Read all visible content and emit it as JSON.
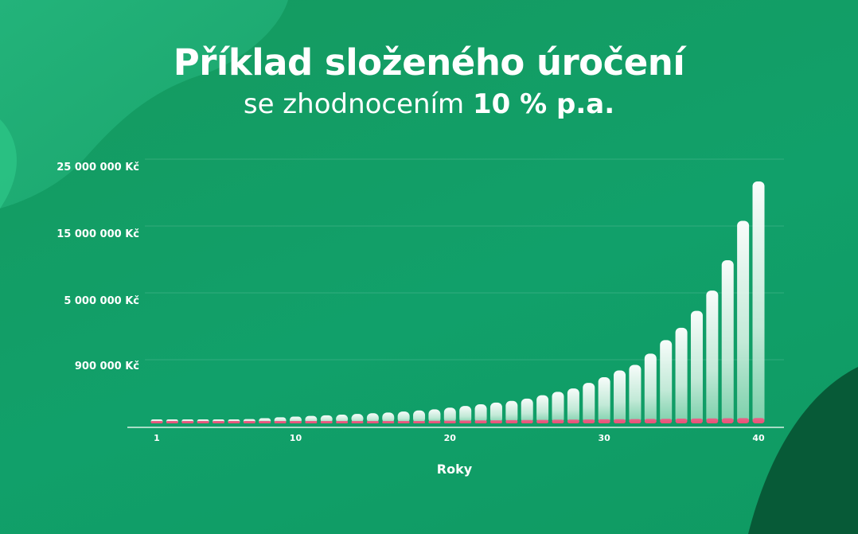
{
  "title": "Příklad složeného úročení",
  "subtitle_prefix": "se zhodnocením",
  "subtitle_bold": "10 % p.a.",
  "colors": {
    "background": "#11a06a",
    "bar_total": "#e8f8f0",
    "bar_contribution": "#e8567a",
    "text": "#ffffff"
  },
  "chart_data": {
    "type": "bar",
    "xlabel": "Roky",
    "x_ticks": [
      "1",
      "10",
      "20",
      "30",
      "40"
    ],
    "y_ticks": [
      "900 000 Kč",
      "5 000 000 Kč",
      "15 000 000 Kč",
      "25 000 000 Kč"
    ],
    "y_scale": "non-linear",
    "years": [
      1,
      2,
      3,
      4,
      5,
      6,
      7,
      8,
      9,
      10,
      11,
      12,
      13,
      14,
      15,
      16,
      17,
      18,
      19,
      20,
      21,
      22,
      23,
      24,
      25,
      26,
      27,
      28,
      29,
      30,
      31,
      32,
      33,
      34,
      35,
      36,
      37,
      38,
      39,
      40
    ],
    "series": [
      {
        "values": [
          30000,
          70000,
          110000,
          160000,
          230000,
          300000,
          380000,
          460000,
          540000,
          600000,
          660000,
          720000,
          780000,
          840000,
          900000,
          960000,
          1050000,
          1150000,
          1250000,
          1400000,
          1550000,
          1700000,
          1850000,
          2000000,
          2200000,
          2500000,
          2800000,
          3100000,
          3600000,
          4100000,
          4700000,
          5200000,
          6200000,
          7400000,
          8500000,
          10000000,
          11800000,
          14500000,
          18000000,
          21500000
        ]
      },
      {
        "values": [
          12000,
          24000,
          36000,
          48000,
          60000,
          72000,
          84000,
          96000,
          108000,
          120000,
          132000,
          144000,
          156000,
          168000,
          180000,
          192000,
          204000,
          216000,
          228000,
          240000,
          252000,
          264000,
          276000,
          288000,
          300000,
          312000,
          324000,
          336000,
          348000,
          360000,
          372000,
          384000,
          396000,
          408000,
          420000,
          432000,
          444000,
          456000,
          468000,
          480000
        ]
      }
    ]
  }
}
